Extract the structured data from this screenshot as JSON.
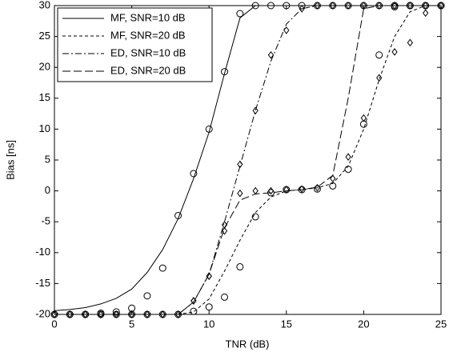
{
  "chart_data": {
    "type": "line",
    "xlabel": "TNR (dB)",
    "ylabel": "Bias [ns]",
    "x": [
      0,
      1,
      2,
      3,
      4,
      5,
      6,
      7,
      8,
      9,
      10,
      11,
      12,
      13,
      14,
      15,
      16,
      17,
      18,
      19,
      20,
      21,
      22,
      23,
      24,
      25
    ],
    "xlim": [
      0,
      25
    ],
    "xticks": [
      0,
      5,
      10,
      15,
      20,
      25
    ],
    "ylim": [
      -20,
      30
    ],
    "yticks": [
      -20,
      -15,
      -10,
      -5,
      0,
      5,
      10,
      15,
      20,
      25,
      30
    ],
    "legend": "upper left",
    "series": [
      {
        "name": "MF, SNR=10 dB",
        "color": "#000000",
        "dash": "none",
        "values": [
          -19.4,
          -19.2,
          -18.9,
          -18.3,
          -17.4,
          -15.9,
          -13.2,
          -9.5,
          -4.5,
          2,
          9.5,
          19,
          28,
          30,
          30,
          30,
          30,
          30,
          30,
          30,
          30,
          30,
          30,
          30,
          30,
          30
        ]
      },
      {
        "name": "MF, SNR=20 dB",
        "color": "#000000",
        "dash": "4,3",
        "values": [
          -20,
          -20,
          -20,
          -20,
          -20,
          -20,
          -20,
          -20,
          -20,
          -19.6,
          -17.5,
          -13,
          -8,
          -3.5,
          -1,
          0,
          0.2,
          0.5,
          1.2,
          4,
          10,
          18,
          25,
          29,
          30,
          30
        ]
      },
      {
        "name": "ED, SNR=10 dB",
        "color": "#000000",
        "dash": "8,3,2,3",
        "values": [
          -20,
          -20,
          -20,
          -20,
          -20,
          -20,
          -20,
          -20,
          -20,
          -18,
          -13.5,
          -5,
          4,
          13,
          21,
          27,
          29.5,
          30,
          30,
          30,
          30,
          30,
          30,
          30,
          30,
          30
        ]
      },
      {
        "name": "ED, SNR=20 dB",
        "color": "#000000",
        "dash": "10,4",
        "values": [
          -20,
          -20,
          -20,
          -20,
          -20,
          -20,
          -20,
          -20,
          -20,
          -18,
          -13.5,
          -6,
          -1.5,
          -0.5,
          -0.3,
          0,
          0.2,
          0.6,
          2.5,
          15,
          29.5,
          30,
          30,
          30,
          30,
          30
        ]
      },
      {
        "marker": "circle",
        "color": "#000000",
        "values": [
          -20,
          -20,
          -20,
          -19.8,
          -19.6,
          -19,
          -17,
          -12.5,
          -4,
          2.8,
          10,
          19.3,
          28.7,
          30,
          30,
          30,
          30,
          30,
          30,
          30,
          30,
          30,
          30,
          30,
          30,
          30
        ]
      },
      {
        "marker": "circle",
        "color": "#000000",
        "values": [
          -20,
          -20,
          -20,
          -20,
          -20,
          -20,
          -20,
          -20,
          -20,
          -19.5,
          -18.8,
          -17.2,
          -12.3,
          -4.2,
          -0.3,
          0.2,
          0.2,
          0.3,
          0.8,
          3.5,
          10.8,
          22,
          29.8,
          30,
          30,
          30
        ]
      },
      {
        "marker": "diamond",
        "color": "#000000",
        "values": [
          -20,
          -20,
          -20,
          -20,
          -20,
          -20,
          -20,
          -20,
          -20,
          -17.8,
          -13.8,
          -6.5,
          4.3,
          13,
          22,
          26,
          29.5,
          30,
          30,
          30,
          30,
          30,
          30,
          30,
          30,
          30
        ]
      },
      {
        "marker": "diamond",
        "color": "#000000",
        "values": [
          -20,
          -20,
          -20,
          -20,
          -20,
          -20,
          -20,
          -20,
          -20,
          -17.8,
          -13.8,
          -5.5,
          -0.4,
          0,
          0,
          0.2,
          0.3,
          0.5,
          2,
          5.5,
          11.8,
          18.3,
          22.5,
          24,
          28.8,
          30
        ]
      }
    ]
  }
}
